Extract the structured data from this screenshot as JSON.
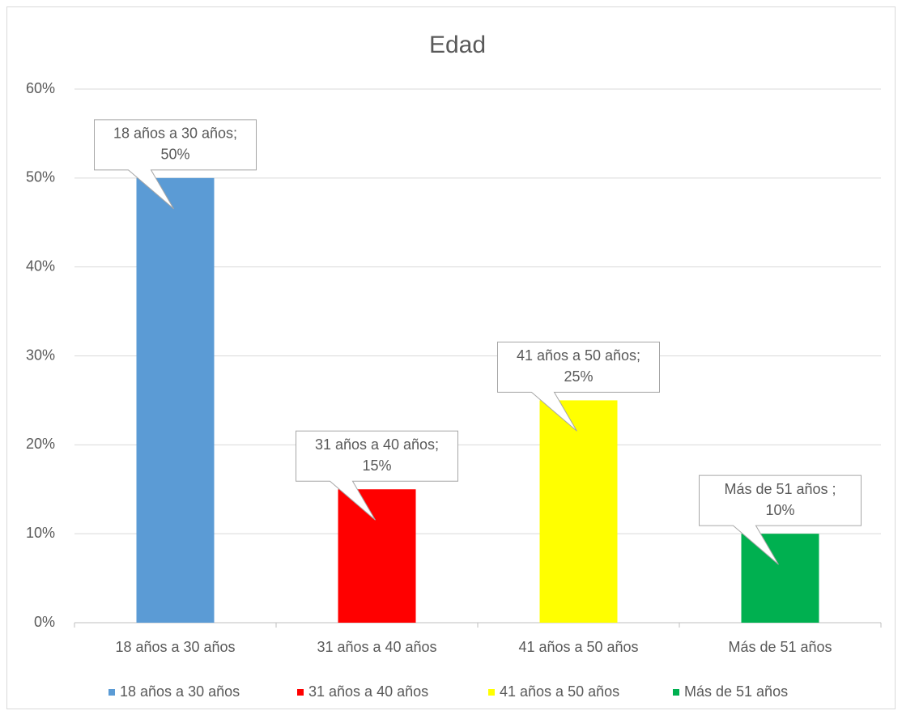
{
  "chart_data": {
    "type": "bar",
    "title": "Edad",
    "categories": [
      "18 años a 30 años",
      "31 años a 40 años",
      "41 años a 50 años",
      "Más de 51 años"
    ],
    "values": [
      50,
      15,
      25,
      10
    ],
    "value_labels": [
      "50%",
      "15%",
      "25%",
      "10%"
    ],
    "label_names": [
      "18 años a 30 años;",
      "31 años a 40 años;",
      "41 años a 50 años;",
      "Más de 51 años ;"
    ],
    "colors": [
      "#5b9bd5",
      "#ff0000",
      "#ffff00",
      "#00b050"
    ],
    "ylim": [
      0,
      60
    ],
    "yticks": [
      {
        "value": 0,
        "label": "0%"
      },
      {
        "value": 10,
        "label": "10%"
      },
      {
        "value": 20,
        "label": "20%"
      },
      {
        "value": 30,
        "label": "30%"
      },
      {
        "value": 40,
        "label": "40%"
      },
      {
        "value": 50,
        "label": "50%"
      },
      {
        "value": 60,
        "label": "60%"
      }
    ],
    "grid": true,
    "legend": "bottom"
  }
}
